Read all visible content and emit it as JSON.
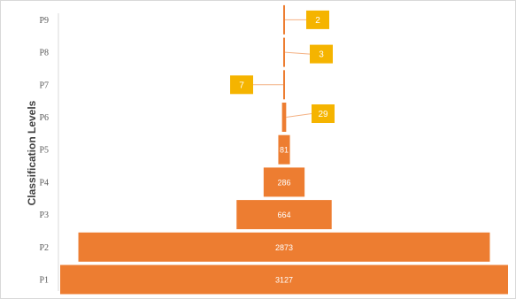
{
  "chart_data": {
    "type": "bar",
    "subtype": "funnel",
    "orientation": "horizontal",
    "ylabel": "Classification Levels",
    "categories": [
      "P1",
      "P2",
      "P3",
      "P4",
      "P5",
      "P6",
      "P7",
      "P8",
      "P9"
    ],
    "values": [
      3127,
      2873,
      664,
      286,
      81,
      29,
      7,
      3,
      2
    ],
    "data_labels": [
      "3127",
      "2873",
      "664",
      "286",
      "81",
      "29",
      "7",
      "3",
      "2"
    ],
    "grid": false,
    "legend": "none"
  },
  "colors": {
    "bar": "#ed7d31",
    "callout": "#f5b400",
    "label_text": "#ffffff",
    "category_text": "#595959",
    "axis_line": "#d9d9d9",
    "border": "#d9d9d9"
  }
}
